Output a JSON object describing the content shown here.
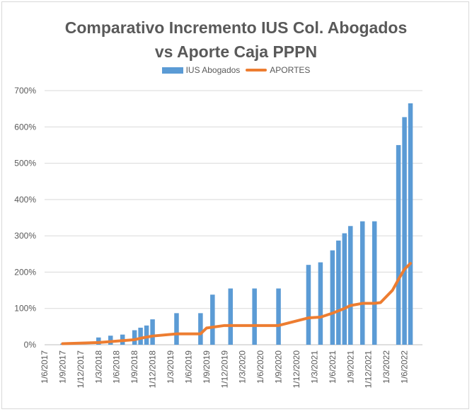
{
  "chart_data": {
    "type": "bar",
    "title": "Comparativo Incremento IUS Col. Abogados",
    "subtitle": "vs Aporte Caja PPPN",
    "xlabel": "",
    "ylabel": "",
    "ylim": [
      0,
      7
    ],
    "y_ticks": [
      "0%",
      "100%",
      "200%",
      "300%",
      "400%",
      "500%",
      "600%",
      "700%"
    ],
    "x_tick_labels": [
      "1/6/2017",
      "1/9/2017",
      "1/12/2017",
      "1/3/2018",
      "1/6/2018",
      "1/9/2018",
      "1/12/2018",
      "1/3/2019",
      "1/6/2019",
      "1/9/2019",
      "1/12/2019",
      "1/3/2020",
      "1/6/2020",
      "1/9/2020",
      "1/12/2020",
      "1/3/2021",
      "1/6/2021",
      "1/9/2021",
      "1/12/2021",
      "1/3/2022",
      "1/6/2022"
    ],
    "x_range": [
      "2017-06",
      "2022-09"
    ],
    "grid": true,
    "legend": "top",
    "colors": {
      "bars": "#5b9bd5",
      "line": "#ed7d31"
    },
    "series": [
      {
        "name": "IUS Abogados",
        "type": "bar",
        "x": [
          "2017-09",
          "2018-03",
          "2018-05",
          "2018-07",
          "2018-09",
          "2018-10",
          "2018-11",
          "2018-12",
          "2019-04",
          "2019-08",
          "2019-10",
          "2020-01",
          "2020-05",
          "2020-09",
          "2021-02",
          "2021-04",
          "2021-06",
          "2021-07",
          "2021-08",
          "2021-09",
          "2021-11",
          "2022-01",
          "2022-05",
          "2022-06",
          "2022-07"
        ],
        "values": [
          0.03,
          0.2,
          0.25,
          0.28,
          0.4,
          0.47,
          0.53,
          0.7,
          0.87,
          0.87,
          1.38,
          1.55,
          1.55,
          1.55,
          2.2,
          2.27,
          2.6,
          2.87,
          3.07,
          3.27,
          3.4,
          3.4,
          5.5,
          6.27,
          6.65
        ]
      },
      {
        "name": "APORTES",
        "type": "line",
        "x": [
          "2017-09",
          "2018-03",
          "2018-06",
          "2018-09",
          "2018-10",
          "2018-12",
          "2019-04",
          "2019-08",
          "2019-09",
          "2019-12",
          "2020-09",
          "2021-02",
          "2021-04",
          "2021-06",
          "2021-08",
          "2021-09",
          "2021-11",
          "2022-01",
          "2022-02",
          "2022-04",
          "2022-05",
          "2022-06",
          "2022-07"
        ],
        "values": [
          0.03,
          0.06,
          0.1,
          0.14,
          0.18,
          0.24,
          0.3,
          0.3,
          0.46,
          0.53,
          0.53,
          0.74,
          0.76,
          0.87,
          1.0,
          1.08,
          1.14,
          1.14,
          1.16,
          1.5,
          1.8,
          2.08,
          2.24
        ]
      }
    ]
  }
}
